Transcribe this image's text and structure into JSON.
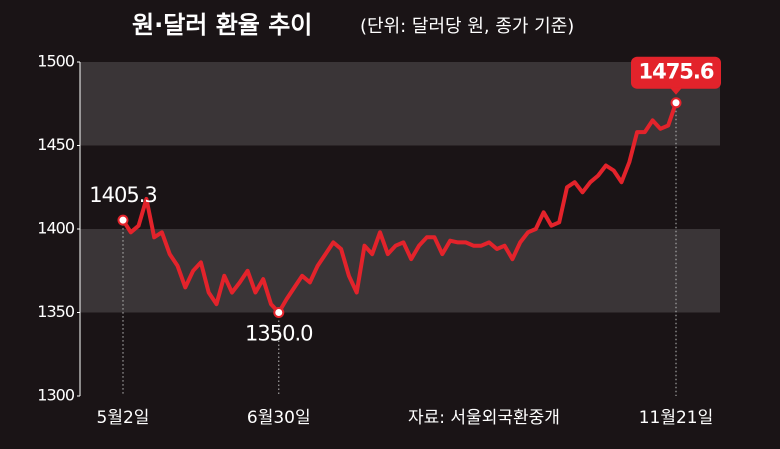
{
  "chart_data": {
    "type": "line",
    "title": "원·달러 환율 추이",
    "subtitle": "(단위: 달러당 원, 종가 기준)",
    "source": "자료: 서울외국환중개",
    "categories": [
      "5월2일",
      null,
      null,
      null,
      null,
      null,
      null,
      null,
      null,
      null,
      null,
      null,
      null,
      null,
      null,
      null,
      null,
      null,
      null,
      null,
      "6월30일",
      null,
      null,
      null,
      null,
      null,
      null,
      null,
      null,
      null,
      null,
      null,
      null,
      null,
      null,
      null,
      null,
      null,
      null,
      null,
      null,
      null,
      null,
      null,
      null,
      null,
      null,
      null,
      null,
      null,
      null,
      null,
      null,
      null,
      null,
      null,
      null,
      null,
      null,
      null,
      null,
      null,
      null,
      null,
      null,
      null,
      null,
      null,
      null,
      null,
      null,
      "11월21일"
    ],
    "values": [
      1405.3,
      1398,
      1402,
      1418,
      1395,
      1398,
      1385,
      1378,
      1365,
      1375,
      1380,
      1362,
      1355,
      1372,
      1362,
      1368,
      1375,
      1362,
      1370,
      1355,
      1350.0,
      1358,
      1365,
      1372,
      1368,
      1378,
      1385,
      1392,
      1388,
      1372,
      1362,
      1390,
      1385,
      1398,
      1385,
      1390,
      1392,
      1382,
      1390,
      1395,
      1395,
      1385,
      1393,
      1392,
      1392,
      1390,
      1390,
      1392,
      1388,
      1390,
      1382,
      1392,
      1398,
      1400,
      1410,
      1402,
      1404,
      1425,
      1428,
      1422,
      1428,
      1432,
      1438,
      1435,
      1428,
      1440,
      1458,
      1458,
      1465,
      1460,
      1462,
      1475.6
    ],
    "value_labels": [
      "1405.3",
      null,
      null,
      null,
      null,
      null,
      null,
      null,
      null,
      null,
      null,
      null,
      null,
      null,
      null,
      null,
      null,
      null,
      null,
      null,
      "1350.0",
      null,
      null,
      null,
      null,
      null,
      null,
      null,
      null,
      null,
      null,
      null,
      null,
      null,
      null,
      null,
      null,
      null,
      null,
      null,
      null,
      null,
      null,
      null,
      null,
      null,
      null,
      null,
      null,
      null,
      null,
      null,
      null,
      null,
      null,
      null,
      null,
      null,
      null,
      null,
      null,
      null,
      null,
      null,
      null,
      null,
      null,
      null,
      null,
      null,
      null,
      "1475.6"
    ],
    "color": "#e3232b",
    "ylim": [
      1300,
      1500
    ],
    "yticks": [
      1300,
      1350,
      1400,
      1450,
      1500
    ],
    "grid": "bands"
  }
}
